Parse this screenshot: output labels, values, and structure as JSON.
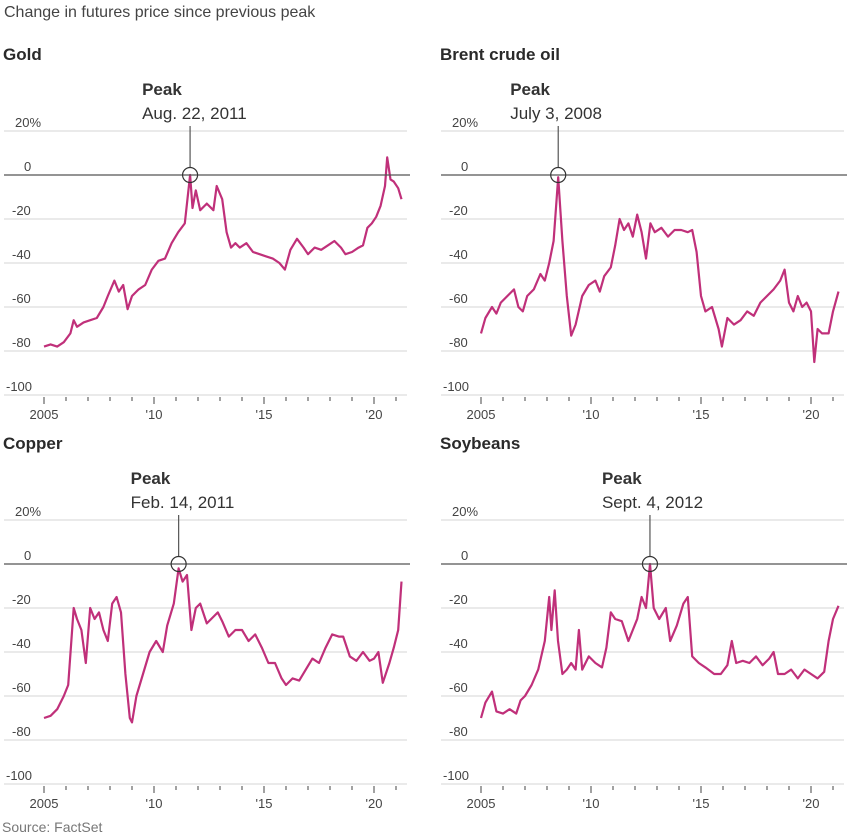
{
  "subtitle": "Change in futures price since previous peak",
  "source": "Source: FactSet",
  "line_color": "#c0307a",
  "chart_data": [
    {
      "type": "line",
      "title": "Gold",
      "peak_label": "Peak",
      "peak_date": "Aug. 22, 2011",
      "peak_x": 2011.64,
      "xlabel": "",
      "ylabel": "",
      "ylim": [
        -100,
        20
      ],
      "xlim": [
        2004.4,
        2021.4
      ],
      "y_ticks": [
        20,
        0,
        -20,
        -40,
        -60,
        -80,
        -100
      ],
      "y_tick_labels": [
        "20%",
        "0",
        "-20",
        "-40",
        "-60",
        "-80",
        "-100"
      ],
      "x_ticks": [
        2005,
        2010,
        2015,
        2020
      ],
      "x_tick_labels": [
        "2005",
        "'10",
        "'15",
        "'20"
      ],
      "x": [
        2005,
        2005.3,
        2005.6,
        2005.9,
        2006.2,
        2006.35,
        2006.5,
        2006.8,
        2007.1,
        2007.4,
        2007.7,
        2007.9,
        2008.2,
        2008.4,
        2008.6,
        2008.8,
        2009.0,
        2009.3,
        2009.6,
        2009.9,
        2010.2,
        2010.5,
        2010.8,
        2011.1,
        2011.4,
        2011.64,
        2011.75,
        2011.9,
        2012.1,
        2012.4,
        2012.7,
        2012.85,
        2013.1,
        2013.3,
        2013.5,
        2013.7,
        2013.9,
        2014.2,
        2014.5,
        2014.8,
        2015.1,
        2015.4,
        2015.7,
        2015.95,
        2016.2,
        2016.5,
        2016.8,
        2017.0,
        2017.3,
        2017.6,
        2017.9,
        2018.2,
        2018.5,
        2018.7,
        2019.0,
        2019.3,
        2019.5,
        2019.7,
        2019.9,
        2020.1,
        2020.3,
        2020.5,
        2020.6,
        2020.75,
        2020.9,
        2021.1,
        2021.25
      ],
      "values": [
        -78,
        -77,
        -78,
        -76,
        -72,
        -66,
        -69,
        -67,
        -66,
        -65,
        -60,
        -55,
        -48,
        -53,
        -50,
        -61,
        -55,
        -52,
        -50,
        -43,
        -39,
        -38,
        -31,
        -26,
        -22,
        0,
        -15,
        -7,
        -16,
        -13,
        -16,
        -5,
        -11,
        -26,
        -33,
        -31,
        -33,
        -31,
        -35,
        -36,
        -37,
        -38,
        -40,
        -43,
        -34,
        -29,
        -33,
        -36,
        -33,
        -34,
        -32,
        -30,
        -33,
        -36,
        -35,
        -33,
        -32,
        -24,
        -22,
        -19,
        -14,
        -5,
        8,
        -2,
        -3,
        -6,
        -11
      ]
    },
    {
      "type": "line",
      "title": "Brent crude oil",
      "peak_label": "Peak",
      "peak_date": "July 3, 2008",
      "peak_x": 2008.51,
      "xlabel": "",
      "ylabel": "",
      "ylim": [
        -100,
        20
      ],
      "xlim": [
        2004.4,
        2021.4
      ],
      "y_ticks": [
        20,
        0,
        -20,
        -40,
        -60,
        -80,
        -100
      ],
      "y_tick_labels": [
        "20%",
        "0",
        "-20",
        "-40",
        "-60",
        "-80",
        "-100"
      ],
      "x_ticks": [
        2005,
        2010,
        2015,
        2020
      ],
      "x_tick_labels": [
        "2005",
        "'10",
        "'15",
        "'20"
      ],
      "x": [
        2005,
        2005.2,
        2005.5,
        2005.7,
        2005.9,
        2006.2,
        2006.5,
        2006.7,
        2006.9,
        2007.1,
        2007.4,
        2007.7,
        2007.9,
        2008.1,
        2008.3,
        2008.51,
        2008.7,
        2008.9,
        2009.1,
        2009.3,
        2009.6,
        2009.9,
        2010.2,
        2010.4,
        2010.6,
        2010.9,
        2011.1,
        2011.3,
        2011.5,
        2011.7,
        2011.9,
        2012.1,
        2012.3,
        2012.5,
        2012.7,
        2012.9,
        2013.2,
        2013.5,
        2013.8,
        2014.1,
        2014.4,
        2014.6,
        2014.8,
        2015.0,
        2015.2,
        2015.5,
        2015.8,
        2015.95,
        2016.2,
        2016.5,
        2016.8,
        2017.1,
        2017.4,
        2017.7,
        2018.0,
        2018.3,
        2018.6,
        2018.8,
        2019.0,
        2019.2,
        2019.4,
        2019.6,
        2019.8,
        2020.0,
        2020.15,
        2020.3,
        2020.5,
        2020.8,
        2021.0,
        2021.25
      ],
      "values": [
        -72,
        -65,
        -60,
        -63,
        -58,
        -55,
        -52,
        -60,
        -62,
        -55,
        -52,
        -45,
        -48,
        -40,
        -30,
        -1,
        -30,
        -55,
        -73,
        -68,
        -55,
        -50,
        -48,
        -53,
        -46,
        -42,
        -32,
        -20,
        -25,
        -22,
        -28,
        -18,
        -26,
        -38,
        -22,
        -26,
        -24,
        -28,
        -25,
        -25,
        -26,
        -25,
        -35,
        -55,
        -62,
        -60,
        -70,
        -78,
        -65,
        -68,
        -66,
        -62,
        -64,
        -58,
        -55,
        -52,
        -48,
        -43,
        -58,
        -62,
        -55,
        -60,
        -58,
        -62,
        -85,
        -70,
        -72,
        -72,
        -62,
        -53
      ]
    },
    {
      "type": "line",
      "title": "Copper",
      "peak_label": "Peak",
      "peak_date": "Feb. 14, 2011",
      "peak_x": 2011.12,
      "xlabel": "",
      "ylabel": "",
      "ylim": [
        -100,
        20
      ],
      "xlim": [
        2004.4,
        2021.4
      ],
      "y_ticks": [
        20,
        0,
        -20,
        -40,
        -60,
        -80,
        -100
      ],
      "y_tick_labels": [
        "20%",
        "0",
        "-20",
        "-40",
        "-60",
        "-80",
        "-100"
      ],
      "x": [
        2005,
        2005.3,
        2005.6,
        2005.9,
        2006.1,
        2006.35,
        2006.5,
        2006.7,
        2006.9,
        2007.1,
        2007.3,
        2007.5,
        2007.7,
        2007.9,
        2008.1,
        2008.3,
        2008.5,
        2008.7,
        2008.9,
        2009.0,
        2009.2,
        2009.5,
        2009.8,
        2010.1,
        2010.4,
        2010.6,
        2010.9,
        2011.12,
        2011.3,
        2011.5,
        2011.7,
        2011.9,
        2012.1,
        2012.4,
        2012.6,
        2012.9,
        2013.1,
        2013.4,
        2013.7,
        2014.0,
        2014.3,
        2014.6,
        2014.9,
        2015.2,
        2015.5,
        2015.8,
        2016.0,
        2016.3,
        2016.6,
        2016.9,
        2017.2,
        2017.5,
        2017.8,
        2018.1,
        2018.4,
        2018.6,
        2018.9,
        2019.2,
        2019.5,
        2019.8,
        2020.0,
        2020.2,
        2020.4,
        2020.7,
        2020.9,
        2021.1,
        2021.25
      ],
      "values": [
        -70,
        -69,
        -66,
        -60,
        -55,
        -20,
        -25,
        -30,
        -45,
        -20,
        -25,
        -22,
        -30,
        -35,
        -18,
        -15,
        -22,
        -50,
        -70,
        -72,
        -60,
        -50,
        -40,
        -35,
        -40,
        -28,
        -18,
        -2,
        -8,
        -5,
        -30,
        -20,
        -18,
        -27,
        -25,
        -22,
        -26,
        -33,
        -30,
        -30,
        -35,
        -32,
        -38,
        -45,
        -45,
        -52,
        -55,
        -52,
        -53,
        -48,
        -43,
        -45,
        -38,
        -32,
        -33,
        -33,
        -42,
        -44,
        -40,
        -44,
        -43,
        -40,
        -54,
        -45,
        -38,
        -30,
        -8
      ]
    },
    {
      "type": "line",
      "title": "Soybeans",
      "peak_label": "Peak",
      "peak_date": "Sept. 4, 2012",
      "peak_x": 2012.68,
      "xlabel": "",
      "ylabel": "",
      "ylim": [
        -100,
        20
      ],
      "xlim": [
        2004.4,
        2021.4
      ],
      "y_ticks": [
        20,
        0,
        -20,
        -40,
        -60,
        -80,
        -100
      ],
      "y_tick_labels": [
        "20%",
        "0",
        "-20",
        "-40",
        "-60",
        "-80",
        "-100"
      ],
      "x_ticks": [
        2005,
        2010,
        2015,
        2020
      ],
      "x_tick_labels": [
        "2005",
        "'10",
        "'15",
        "'20"
      ],
      "x": [
        2005,
        2005.2,
        2005.5,
        2005.7,
        2006.0,
        2006.3,
        2006.6,
        2006.8,
        2007.0,
        2007.3,
        2007.6,
        2007.9,
        2008.1,
        2008.2,
        2008.35,
        2008.5,
        2008.7,
        2008.9,
        2009.1,
        2009.3,
        2009.45,
        2009.6,
        2009.9,
        2010.2,
        2010.5,
        2010.7,
        2010.9,
        2011.1,
        2011.4,
        2011.7,
        2011.9,
        2012.1,
        2012.3,
        2012.5,
        2012.68,
        2012.85,
        2013.1,
        2013.4,
        2013.6,
        2013.9,
        2014.2,
        2014.4,
        2014.6,
        2014.9,
        2015.2,
        2015.6,
        2015.9,
        2016.2,
        2016.4,
        2016.6,
        2016.9,
        2017.2,
        2017.5,
        2017.8,
        2018.1,
        2018.3,
        2018.5,
        2018.8,
        2019.1,
        2019.4,
        2019.7,
        2020.0,
        2020.3,
        2020.6,
        2020.8,
        2021.0,
        2021.25
      ],
      "values": [
        -70,
        -63,
        -58,
        -67,
        -68,
        -66,
        -68,
        -62,
        -60,
        -55,
        -48,
        -35,
        -15,
        -30,
        -12,
        -35,
        -50,
        -48,
        -45,
        -48,
        -30,
        -48,
        -42,
        -45,
        -47,
        -38,
        -22,
        -25,
        -26,
        -35,
        -30,
        -25,
        -15,
        -20,
        0,
        -20,
        -25,
        -20,
        -35,
        -28,
        -18,
        -15,
        -42,
        -45,
        -47,
        -50,
        -50,
        -46,
        -35,
        -45,
        -44,
        -45,
        -42,
        -46,
        -43,
        -40,
        -50,
        -50,
        -48,
        -52,
        -48,
        -50,
        -52,
        -49,
        -35,
        -25,
        -19
      ]
    }
  ]
}
